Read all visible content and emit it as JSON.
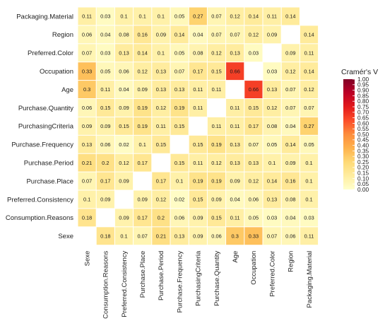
{
  "chart_data": {
    "type": "heatmap",
    "title": "",
    "xlabel": "",
    "ylabel": "",
    "rows": [
      "Packaging.Material",
      "Region",
      "Preferred.Color",
      "Occupation",
      "Age",
      "Purchase.Quantity",
      "PurchasingCriteria",
      "Purchase.Frequency",
      "Purchase.Period",
      "Purchase.Place",
      "Preferred.Consistency",
      "Consumption.Reasons",
      "Sexe"
    ],
    "columns": [
      "Sexe",
      "Consumption.Reasons",
      "Preferred.Consistency",
      "Purchase.Place",
      "Purchase.Period",
      "Purchase.Frequency",
      "PurchasingCriteria",
      "Purchase.Quantity",
      "Age",
      "Occupation",
      "Preferred.Color",
      "Region",
      "Packaging.Material"
    ],
    "values": [
      [
        0.11,
        0.03,
        0.1,
        0.1,
        0.1,
        0.05,
        0.27,
        0.07,
        0.12,
        0.14,
        0.11,
        0.14,
        null
      ],
      [
        0.06,
        0.04,
        0.08,
        0.16,
        0.09,
        0.14,
        0.04,
        0.07,
        0.07,
        0.12,
        0.09,
        null,
        0.14
      ],
      [
        0.07,
        0.03,
        0.13,
        0.14,
        0.1,
        0.05,
        0.08,
        0.12,
        0.13,
        0.03,
        null,
        0.09,
        0.11
      ],
      [
        0.33,
        0.05,
        0.06,
        0.12,
        0.13,
        0.07,
        0.17,
        0.15,
        0.66,
        null,
        0.03,
        0.12,
        0.14
      ],
      [
        0.3,
        0.11,
        0.04,
        0.09,
        0.13,
        0.13,
        0.11,
        0.11,
        null,
        0.66,
        0.13,
        0.07,
        0.12
      ],
      [
        0.06,
        0.15,
        0.09,
        0.19,
        0.12,
        0.19,
        0.11,
        null,
        0.11,
        0.15,
        0.12,
        0.07,
        0.07
      ],
      [
        0.09,
        0.09,
        0.15,
        0.19,
        0.11,
        0.15,
        null,
        0.11,
        0.11,
        0.17,
        0.08,
        0.04,
        0.27
      ],
      [
        0.13,
        0.06,
        0.02,
        0.1,
        0.15,
        null,
        0.15,
        0.19,
        0.13,
        0.07,
        0.05,
        0.14,
        0.05
      ],
      [
        0.21,
        0.2,
        0.12,
        0.17,
        null,
        0.15,
        0.11,
        0.12,
        0.13,
        0.13,
        0.1,
        0.09,
        0.1
      ],
      [
        0.07,
        0.17,
        0.09,
        null,
        0.17,
        0.1,
        0.19,
        0.19,
        0.09,
        0.12,
        0.14,
        0.16,
        0.1
      ],
      [
        0.1,
        0.09,
        null,
        0.09,
        0.12,
        0.02,
        0.15,
        0.09,
        0.04,
        0.06,
        0.13,
        0.08,
        0.1
      ],
      [
        0.18,
        null,
        0.09,
        0.17,
        0.2,
        0.06,
        0.09,
        0.15,
        0.11,
        0.05,
        0.03,
        0.04,
        0.03
      ],
      [
        null,
        0.18,
        0.1,
        0.07,
        0.21,
        0.13,
        0.09,
        0.06,
        0.3,
        0.33,
        0.07,
        0.06,
        0.11
      ]
    ],
    "legend": {
      "title": "Cramér's V",
      "ticks": [
        "0.00",
        "0.05",
        "0.10",
        "0.15",
        "0.20",
        "0.25",
        "0.30",
        "0.35",
        "0.40",
        "0.45",
        "0.50",
        "0.55",
        "0.60",
        "0.65",
        "0.70",
        "0.75",
        "0.80",
        "0.85",
        "0.90",
        "0.95",
        "1.00"
      ],
      "range": [
        0,
        1
      ],
      "placement": "right",
      "colors": [
        "#ffffcc",
        "#ffeda0",
        "#fed976",
        "#feb24c",
        "#fd8d3c",
        "#fc4e2a",
        "#e31a1c",
        "#bd0026",
        "#800026"
      ]
    },
    "grid": false
  }
}
